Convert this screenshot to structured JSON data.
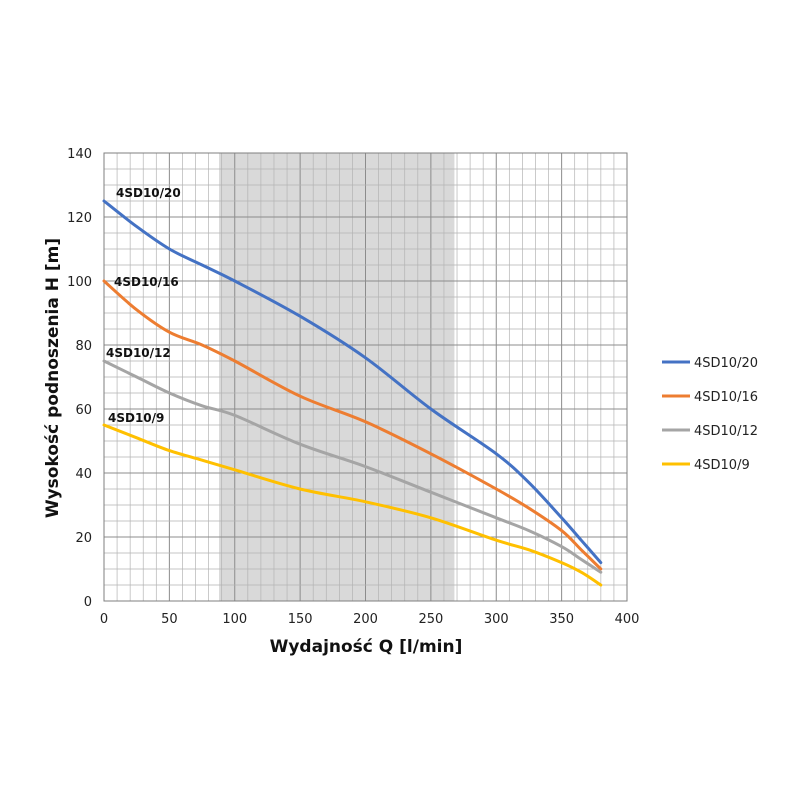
{
  "chart_data": {
    "type": "line",
    "xlabel": "Wydajność Q [l/min]",
    "ylabel": "Wysokość podnoszenia H [m]",
    "xlim": [
      0,
      400
    ],
    "ylim": [
      0,
      140
    ],
    "x_ticks": [
      "0",
      "50",
      "100",
      "150",
      "200",
      "250",
      "300",
      "350",
      "400"
    ],
    "y_ticks": [
      "0",
      "20",
      "40",
      "60",
      "80",
      "100",
      "120",
      "140"
    ],
    "grid": true,
    "legend_position": "right",
    "highlight_band": {
      "x_from": 88,
      "x_to": 268,
      "color": "#d9d9d9"
    },
    "series": [
      {
        "name": "4SD10/20",
        "label": "4SD10/20",
        "color": "#4472c4",
        "points": [
          [
            0,
            125
          ],
          [
            25,
            117
          ],
          [
            50,
            110
          ],
          [
            75,
            105
          ],
          [
            100,
            100
          ],
          [
            150,
            89
          ],
          [
            200,
            76
          ],
          [
            250,
            60
          ],
          [
            300,
            46
          ],
          [
            325,
            37
          ],
          [
            350,
            26
          ],
          [
            365,
            19
          ],
          [
            380,
            12
          ]
        ]
      },
      {
        "name": "4SD10/16",
        "label": "4SD10/16",
        "color": "#ed7d31",
        "points": [
          [
            0,
            100
          ],
          [
            25,
            91
          ],
          [
            50,
            84
          ],
          [
            75,
            80
          ],
          [
            100,
            75
          ],
          [
            150,
            64
          ],
          [
            200,
            56
          ],
          [
            250,
            46
          ],
          [
            300,
            35
          ],
          [
            325,
            29
          ],
          [
            350,
            22
          ],
          [
            365,
            16
          ],
          [
            380,
            10
          ]
        ]
      },
      {
        "name": "4SD10/12",
        "label": "4SD10/12",
        "color": "#a5a5a5",
        "points": [
          [
            0,
            75
          ],
          [
            25,
            70
          ],
          [
            50,
            65
          ],
          [
            75,
            61
          ],
          [
            100,
            58
          ],
          [
            150,
            49
          ],
          [
            200,
            42
          ],
          [
            250,
            34
          ],
          [
            300,
            26
          ],
          [
            325,
            22
          ],
          [
            350,
            17
          ],
          [
            365,
            13
          ],
          [
            380,
            9
          ]
        ]
      },
      {
        "name": "4SD10/9",
        "label": "4SD10/9",
        "color": "#ffc000",
        "points": [
          [
            0,
            55
          ],
          [
            25,
            51
          ],
          [
            50,
            47
          ],
          [
            75,
            44
          ],
          [
            100,
            41
          ],
          [
            150,
            35
          ],
          [
            200,
            31
          ],
          [
            250,
            26
          ],
          [
            300,
            19
          ],
          [
            325,
            16
          ],
          [
            350,
            12
          ],
          [
            365,
            9
          ],
          [
            380,
            5
          ]
        ]
      }
    ]
  }
}
